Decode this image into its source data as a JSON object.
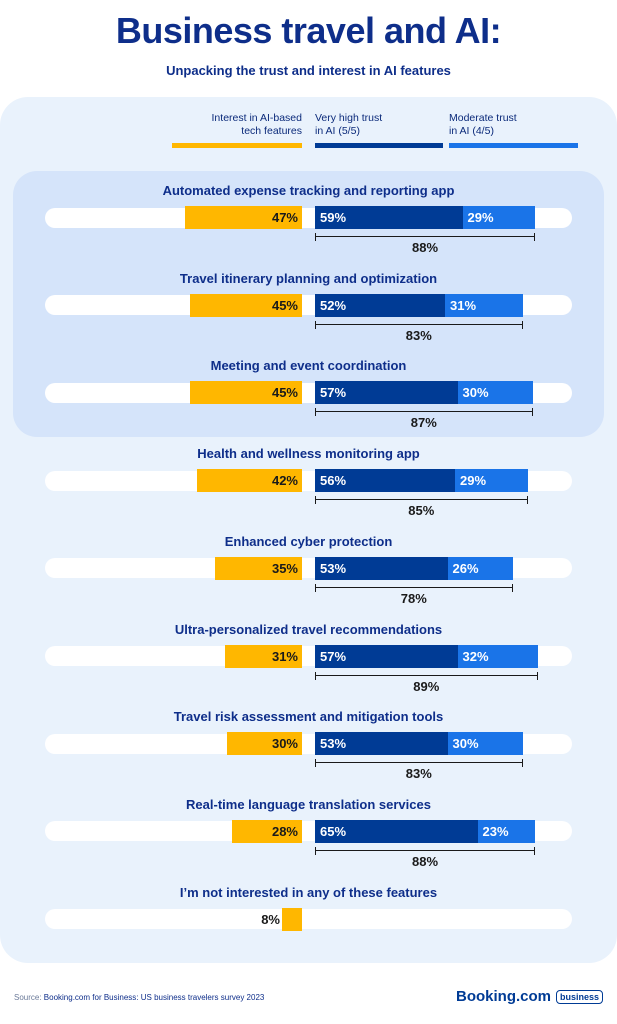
{
  "title": "Business travel and AI:",
  "subtitle": "Unpacking the trust and interest in AI features",
  "colors": {
    "interest": "#ffb700",
    "very_high": "#003b95",
    "moderate": "#1a74e8",
    "panel": "#e9f2fc",
    "highlight": "#d5e4fa"
  },
  "legend": {
    "interest_line1": "Interest in AI-based",
    "interest_line2": "tech features",
    "very_high_line1": "Very high trust",
    "very_high_line2": "in AI (5/5)",
    "moderate_line1": "Moderate trust",
    "moderate_line2": "in AI (4/5)"
  },
  "chart_data": {
    "type": "bar",
    "categories": [
      "Automated expense tracking and reporting app",
      "Travel itinerary planning and optimization",
      "Meeting and event coordination",
      "Health and wellness monitoring app",
      "Enhanced cyber protection",
      "Ultra-personalized travel recommendations",
      "Travel risk assessment and mitigation tools",
      "Real-time language translation services",
      "I’m not interested in any of these features"
    ],
    "series": [
      {
        "name": "Interest in AI-based tech features",
        "values": [
          47,
          45,
          45,
          42,
          35,
          31,
          30,
          28,
          8
        ]
      },
      {
        "name": "Very high trust in AI (5/5)",
        "values": [
          59,
          52,
          57,
          56,
          53,
          57,
          53,
          65,
          null
        ]
      },
      {
        "name": "Moderate trust in AI (4/5)",
        "values": [
          29,
          31,
          30,
          29,
          26,
          32,
          30,
          23,
          null
        ]
      }
    ],
    "totals": [
      88,
      83,
      87,
      85,
      78,
      89,
      83,
      88,
      null
    ],
    "interest_labels": [
      "47%",
      "45%",
      "45%",
      "42%",
      "35%",
      "31%",
      "30%",
      "28%",
      "8%"
    ],
    "very_high_labels": [
      "59%",
      "52%",
      "57%",
      "56%",
      "53%",
      "57%",
      "53%",
      "65%",
      ""
    ],
    "moderate_labels": [
      "29%",
      "31%",
      "30%",
      "29%",
      "26%",
      "32%",
      "30%",
      "23%",
      ""
    ],
    "total_labels": [
      "88%",
      "83%",
      "87%",
      "85%",
      "78%",
      "89%",
      "83%",
      "88%",
      ""
    ],
    "highlighted_rows": [
      0,
      1,
      2
    ],
    "unit": "%"
  },
  "footer": {
    "source_prefix": "Source: ",
    "source_text": "Booking.com for Business: US business travelers survey 2023",
    "brand": "Booking.com",
    "brand_badge": "business"
  }
}
